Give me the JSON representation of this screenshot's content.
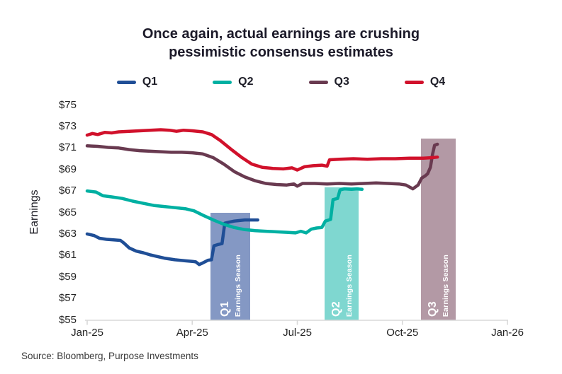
{
  "header": {
    "title_line1": "Once again, actual earnings are crushing",
    "title_line2": "pessimistic consensus estimates"
  },
  "footer": {
    "source": "Source: Bloomberg, Purpose Investments"
  },
  "chart_data": {
    "type": "line",
    "title": "Once again, actual earnings are crushing pessimistic consensus estimates",
    "xlabel": "",
    "ylabel": "Earnings",
    "ylim": [
      55,
      75
    ],
    "x_range_months": 12,
    "grid": false,
    "legend_position": "top",
    "axis_color": "#d8d8d8",
    "y_ticks": [
      "$75",
      "$73",
      "$71",
      "$69",
      "$67",
      "$65",
      "$63",
      "$61",
      "$59",
      "$57",
      "$55"
    ],
    "x_ticks": [
      "Jan-25",
      "Apr-25",
      "Jul-25",
      "Oct-25",
      "Jan-26"
    ],
    "series": [
      {
        "name": "Q1",
        "color": "#1f4e96",
        "points": [
          [
            0,
            63.0
          ],
          [
            0.2,
            62.85
          ],
          [
            0.35,
            62.6
          ],
          [
            0.55,
            62.5
          ],
          [
            0.75,
            62.45
          ],
          [
            0.95,
            62.4
          ],
          [
            1.05,
            62.15
          ],
          [
            1.2,
            61.7
          ],
          [
            1.4,
            61.4
          ],
          [
            1.6,
            61.25
          ],
          [
            1.8,
            61.05
          ],
          [
            2.0,
            60.9
          ],
          [
            2.2,
            60.75
          ],
          [
            2.5,
            60.6
          ],
          [
            2.8,
            60.5
          ],
          [
            3.0,
            60.45
          ],
          [
            3.1,
            60.4
          ],
          [
            3.2,
            60.15
          ],
          [
            3.3,
            60.3
          ],
          [
            3.45,
            60.55
          ],
          [
            3.55,
            60.6
          ],
          [
            3.62,
            61.9
          ],
          [
            3.72,
            62.0
          ],
          [
            3.85,
            62.1
          ],
          [
            3.93,
            64.0
          ],
          [
            4.05,
            64.1
          ],
          [
            4.2,
            64.2
          ],
          [
            4.5,
            64.3
          ],
          [
            4.87,
            64.3
          ]
        ]
      },
      {
        "name": "Q2",
        "color": "#00b0a2",
        "points": [
          [
            0,
            67.0
          ],
          [
            0.25,
            66.9
          ],
          [
            0.45,
            66.55
          ],
          [
            0.7,
            66.45
          ],
          [
            1.0,
            66.3
          ],
          [
            1.3,
            66.05
          ],
          [
            1.6,
            65.85
          ],
          [
            1.9,
            65.65
          ],
          [
            2.2,
            65.55
          ],
          [
            2.5,
            65.45
          ],
          [
            2.8,
            65.35
          ],
          [
            3.05,
            65.15
          ],
          [
            3.3,
            64.75
          ],
          [
            3.6,
            64.3
          ],
          [
            3.9,
            63.9
          ],
          [
            4.2,
            63.6
          ],
          [
            4.5,
            63.4
          ],
          [
            4.8,
            63.3
          ],
          [
            5.1,
            63.25
          ],
          [
            5.4,
            63.2
          ],
          [
            5.7,
            63.15
          ],
          [
            5.95,
            63.1
          ],
          [
            6.1,
            63.25
          ],
          [
            6.25,
            63.1
          ],
          [
            6.4,
            63.45
          ],
          [
            6.55,
            63.55
          ],
          [
            6.7,
            63.6
          ],
          [
            6.8,
            64.2
          ],
          [
            6.95,
            64.35
          ],
          [
            7.02,
            66.2
          ],
          [
            7.15,
            66.3
          ],
          [
            7.22,
            67.1
          ],
          [
            7.35,
            67.2
          ],
          [
            7.55,
            67.15
          ],
          [
            7.7,
            67.2
          ],
          [
            7.85,
            67.15
          ]
        ]
      },
      {
        "name": "Q3",
        "color": "#693a50",
        "points": [
          [
            0,
            71.2
          ],
          [
            0.3,
            71.15
          ],
          [
            0.6,
            71.05
          ],
          [
            0.9,
            71.0
          ],
          [
            1.2,
            70.85
          ],
          [
            1.5,
            70.75
          ],
          [
            1.8,
            70.7
          ],
          [
            2.1,
            70.65
          ],
          [
            2.4,
            70.6
          ],
          [
            2.7,
            70.6
          ],
          [
            3.0,
            70.55
          ],
          [
            3.3,
            70.45
          ],
          [
            3.6,
            70.1
          ],
          [
            3.9,
            69.5
          ],
          [
            4.2,
            68.8
          ],
          [
            4.5,
            68.3
          ],
          [
            4.8,
            67.95
          ],
          [
            5.1,
            67.7
          ],
          [
            5.4,
            67.6
          ],
          [
            5.7,
            67.55
          ],
          [
            5.9,
            67.65
          ],
          [
            6.0,
            67.45
          ],
          [
            6.15,
            67.7
          ],
          [
            6.5,
            67.7
          ],
          [
            6.85,
            67.65
          ],
          [
            7.2,
            67.7
          ],
          [
            7.55,
            67.65
          ],
          [
            7.9,
            67.7
          ],
          [
            8.25,
            67.75
          ],
          [
            8.6,
            67.7
          ],
          [
            8.9,
            67.65
          ],
          [
            9.1,
            67.55
          ],
          [
            9.3,
            67.2
          ],
          [
            9.45,
            67.55
          ],
          [
            9.55,
            68.2
          ],
          [
            9.65,
            68.4
          ],
          [
            9.72,
            68.6
          ],
          [
            9.8,
            69.2
          ],
          [
            9.86,
            70.4
          ],
          [
            9.92,
            71.25
          ],
          [
            10.0,
            71.35
          ]
        ]
      },
      {
        "name": "Q4",
        "color": "#d1112b",
        "points": [
          [
            0,
            72.2
          ],
          [
            0.15,
            72.35
          ],
          [
            0.3,
            72.25
          ],
          [
            0.5,
            72.45
          ],
          [
            0.7,
            72.4
          ],
          [
            0.9,
            72.5
          ],
          [
            1.2,
            72.55
          ],
          [
            1.5,
            72.6
          ],
          [
            1.8,
            72.65
          ],
          [
            2.1,
            72.7
          ],
          [
            2.35,
            72.65
          ],
          [
            2.55,
            72.55
          ],
          [
            2.75,
            72.65
          ],
          [
            3.0,
            72.6
          ],
          [
            3.3,
            72.5
          ],
          [
            3.55,
            72.25
          ],
          [
            3.8,
            71.7
          ],
          [
            4.1,
            70.9
          ],
          [
            4.4,
            70.15
          ],
          [
            4.7,
            69.5
          ],
          [
            5.0,
            69.2
          ],
          [
            5.3,
            69.1
          ],
          [
            5.6,
            69.05
          ],
          [
            5.85,
            69.15
          ],
          [
            6.0,
            68.95
          ],
          [
            6.2,
            69.25
          ],
          [
            6.45,
            69.35
          ],
          [
            6.7,
            69.4
          ],
          [
            6.85,
            69.3
          ],
          [
            6.92,
            69.9
          ],
          [
            7.2,
            69.95
          ],
          [
            7.6,
            70.0
          ],
          [
            8.0,
            69.95
          ],
          [
            8.4,
            70.0
          ],
          [
            8.8,
            70.0
          ],
          [
            9.2,
            70.05
          ],
          [
            9.6,
            70.05
          ],
          [
            9.85,
            70.1
          ],
          [
            10.0,
            70.15
          ]
        ]
      }
    ],
    "bands": [
      {
        "quarter": "Q1",
        "label": "Earnings Season",
        "color": "#8498c4",
        "start_month": 3.52,
        "end_month": 4.66,
        "top_value": 65.0
      },
      {
        "quarter": "Q2",
        "label": "Earnings Season",
        "color": "#7fd7d0",
        "start_month": 6.78,
        "end_month": 7.75,
        "top_value": 67.35
      },
      {
        "quarter": "Q3",
        "label": "Earnings Season",
        "color": "#b399a5",
        "start_month": 9.53,
        "end_month": 10.52,
        "top_value": 71.9
      }
    ]
  }
}
